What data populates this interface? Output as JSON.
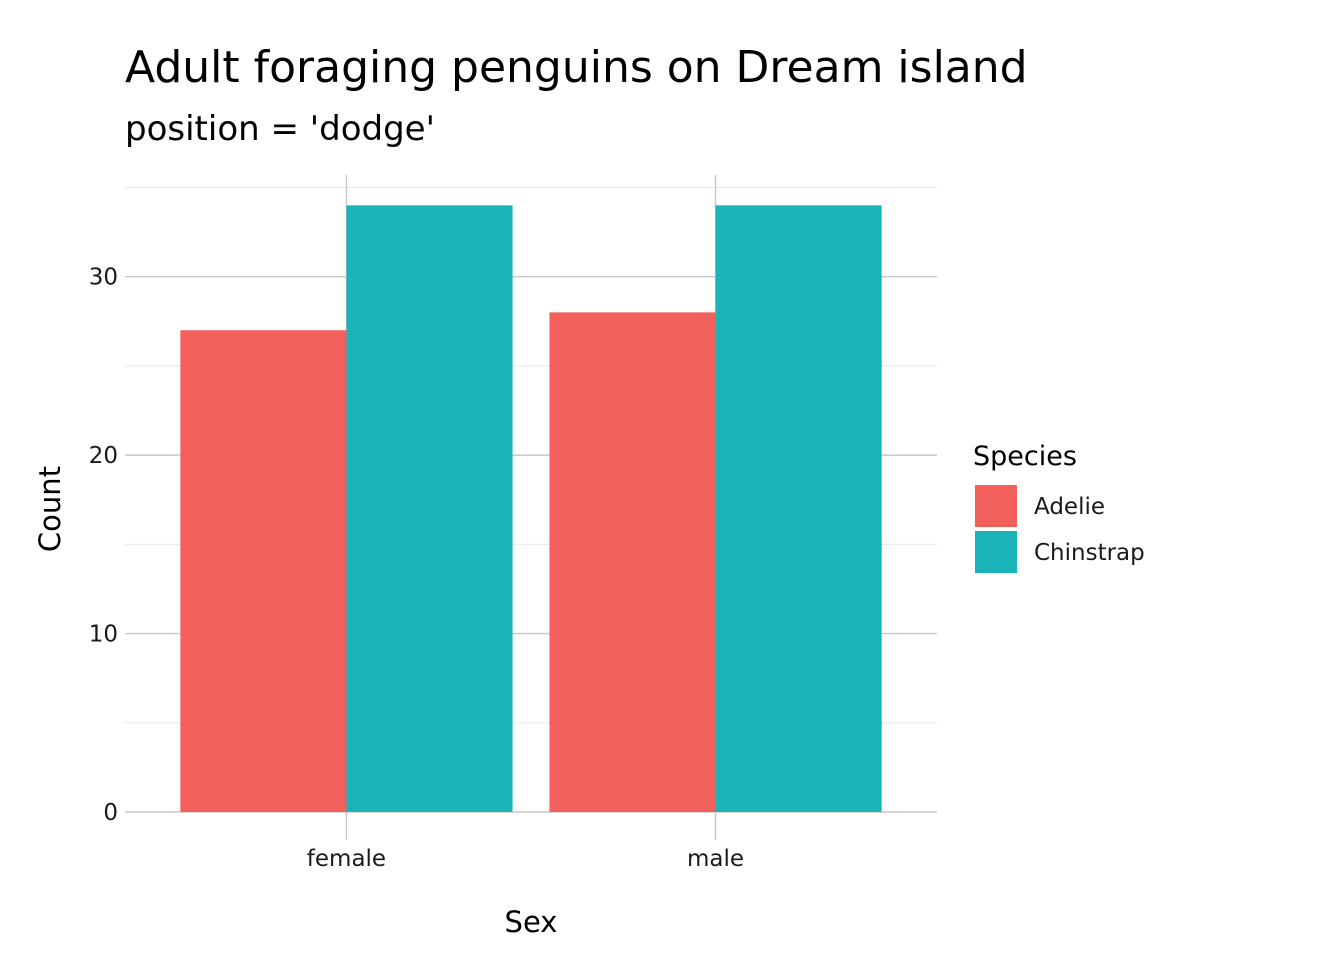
{
  "chart_data": {
    "type": "bar",
    "title": "Adult foraging penguins on Dream island",
    "subtitle": "position = 'dodge'",
    "xlabel": "Sex",
    "ylabel": "Count",
    "categories": [
      "female",
      "male"
    ],
    "series": [
      {
        "name": "Adelie",
        "values": [
          27,
          28
        ],
        "color": "#F2605C"
      },
      {
        "name": "Chinstrap",
        "values": [
          34,
          34
        ],
        "color": "#1AB3B7"
      }
    ],
    "ylim": [
      0,
      35.7
    ],
    "yticks": [
      0,
      10,
      20,
      30
    ],
    "grid": true,
    "legend": {
      "title": "Species",
      "position": "right"
    }
  }
}
